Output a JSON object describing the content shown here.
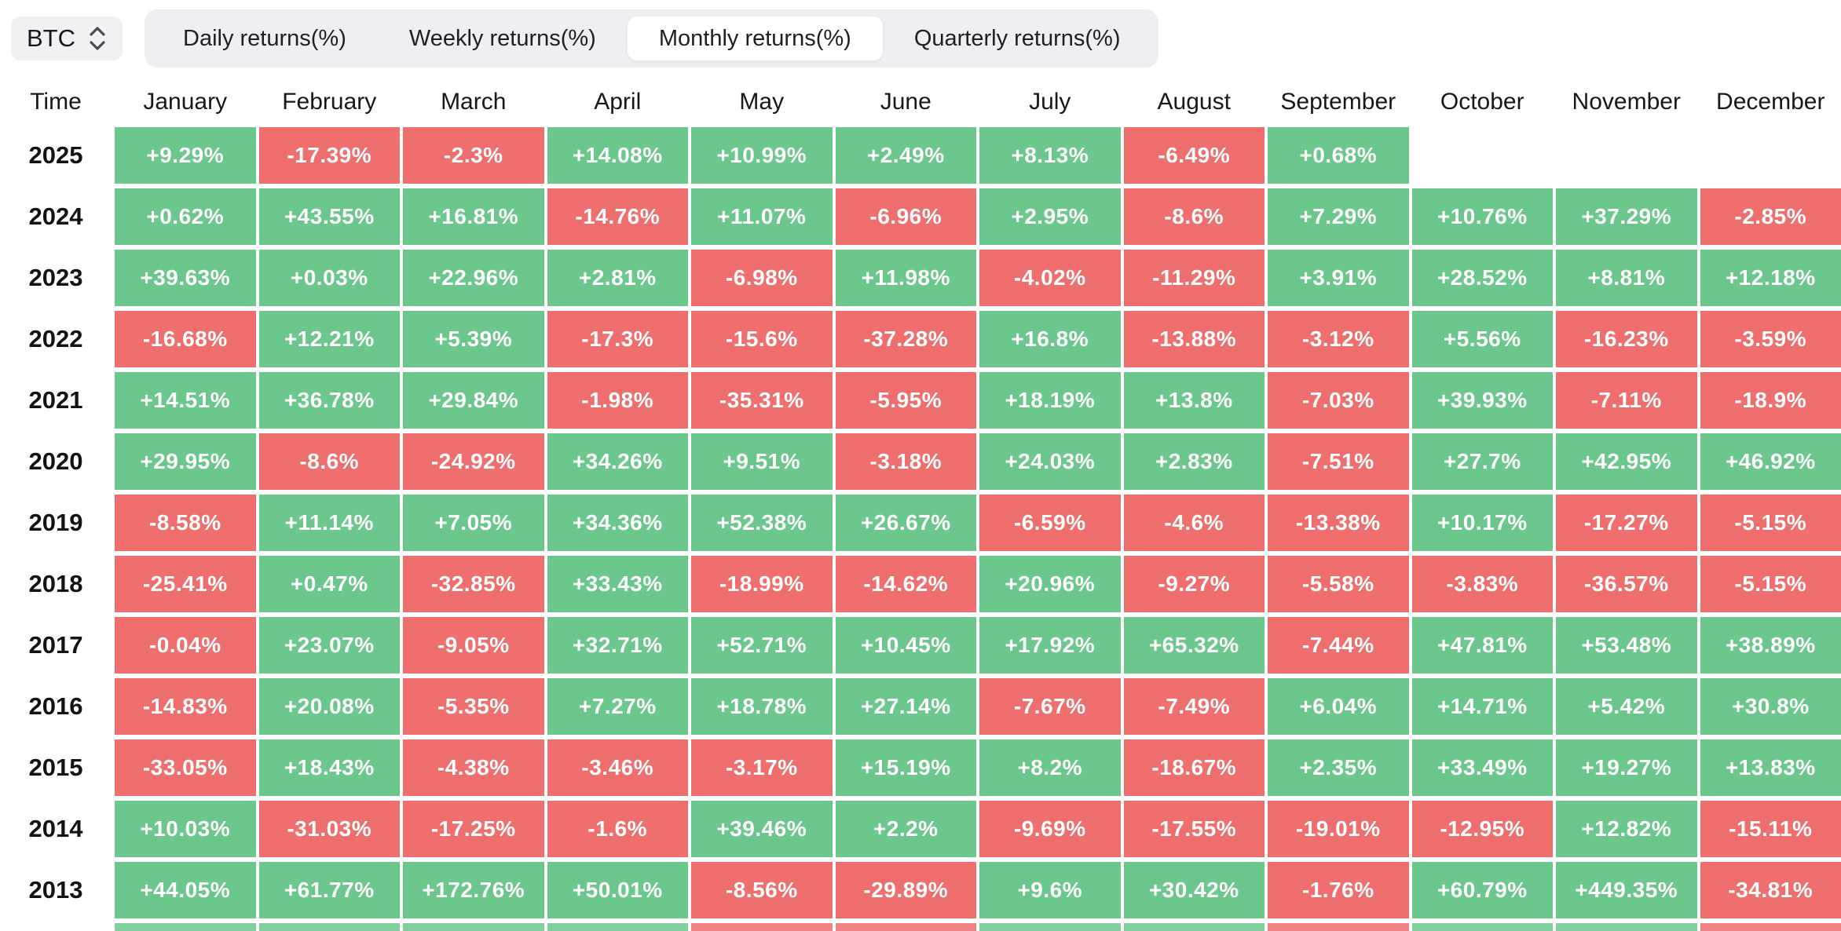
{
  "selector": {
    "symbol": "BTC",
    "icon": "updown-chevron-icon"
  },
  "tabs": {
    "items": [
      {
        "label": "Daily returns(%)",
        "active": false
      },
      {
        "label": "Weekly returns(%)",
        "active": false
      },
      {
        "label": "Monthly returns(%)",
        "active": true
      },
      {
        "label": "Quarterly returns(%)",
        "active": false
      }
    ]
  },
  "colors": {
    "positive": "#6CC78D",
    "negative": "#EE6F6E",
    "cell_text": "#FFFFFF",
    "header_text": "#17171C",
    "tabbar_bg": "#EFEFF3",
    "active_tab_bg": "#FFFFFF",
    "symbol_pill_bg": "#F1F1F4"
  },
  "chart_data": {
    "type": "heatmap",
    "title": "BTC Monthly returns(%)",
    "columns": [
      "Time",
      "January",
      "February",
      "March",
      "April",
      "May",
      "June",
      "July",
      "August",
      "September",
      "October",
      "November",
      "December"
    ],
    "rows": [
      {
        "year": "2025",
        "values": [
          "+9.29%",
          "-17.39%",
          "-2.3%",
          "+14.08%",
          "+10.99%",
          "+2.49%",
          "+8.13%",
          "-6.49%",
          "+0.68%",
          null,
          null,
          null
        ]
      },
      {
        "year": "2024",
        "values": [
          "+0.62%",
          "+43.55%",
          "+16.81%",
          "-14.76%",
          "+11.07%",
          "-6.96%",
          "+2.95%",
          "-8.6%",
          "+7.29%",
          "+10.76%",
          "+37.29%",
          "-2.85%"
        ]
      },
      {
        "year": "2023",
        "values": [
          "+39.63%",
          "+0.03%",
          "+22.96%",
          "+2.81%",
          "-6.98%",
          "+11.98%",
          "-4.02%",
          "-11.29%",
          "+3.91%",
          "+28.52%",
          "+8.81%",
          "+12.18%"
        ]
      },
      {
        "year": "2022",
        "values": [
          "-16.68%",
          "+12.21%",
          "+5.39%",
          "-17.3%",
          "-15.6%",
          "-37.28%",
          "+16.8%",
          "-13.88%",
          "-3.12%",
          "+5.56%",
          "-16.23%",
          "-3.59%"
        ]
      },
      {
        "year": "2021",
        "values": [
          "+14.51%",
          "+36.78%",
          "+29.84%",
          "-1.98%",
          "-35.31%",
          "-5.95%",
          "+18.19%",
          "+13.8%",
          "-7.03%",
          "+39.93%",
          "-7.11%",
          "-18.9%"
        ]
      },
      {
        "year": "2020",
        "values": [
          "+29.95%",
          "-8.6%",
          "-24.92%",
          "+34.26%",
          "+9.51%",
          "-3.18%",
          "+24.03%",
          "+2.83%",
          "-7.51%",
          "+27.7%",
          "+42.95%",
          "+46.92%"
        ]
      },
      {
        "year": "2019",
        "values": [
          "-8.58%",
          "+11.14%",
          "+7.05%",
          "+34.36%",
          "+52.38%",
          "+26.67%",
          "-6.59%",
          "-4.6%",
          "-13.38%",
          "+10.17%",
          "-17.27%",
          "-5.15%"
        ]
      },
      {
        "year": "2018",
        "values": [
          "-25.41%",
          "+0.47%",
          "-32.85%",
          "+33.43%",
          "-18.99%",
          "-14.62%",
          "+20.96%",
          "-9.27%",
          "-5.58%",
          "-3.83%",
          "-36.57%",
          "-5.15%"
        ]
      },
      {
        "year": "2017",
        "values": [
          "-0.04%",
          "+23.07%",
          "-9.05%",
          "+32.71%",
          "+52.71%",
          "+10.45%",
          "+17.92%",
          "+65.32%",
          "-7.44%",
          "+47.81%",
          "+53.48%",
          "+38.89%"
        ]
      },
      {
        "year": "2016",
        "values": [
          "-14.83%",
          "+20.08%",
          "-5.35%",
          "+7.27%",
          "+18.78%",
          "+27.14%",
          "-7.67%",
          "-7.49%",
          "+6.04%",
          "+14.71%",
          "+5.42%",
          "+30.8%"
        ]
      },
      {
        "year": "2015",
        "values": [
          "-33.05%",
          "+18.43%",
          "-4.38%",
          "-3.46%",
          "-3.17%",
          "+15.19%",
          "+8.2%",
          "-18.67%",
          "+2.35%",
          "+33.49%",
          "+19.27%",
          "+13.83%"
        ]
      },
      {
        "year": "2014",
        "values": [
          "+10.03%",
          "-31.03%",
          "-17.25%",
          "-1.6%",
          "+39.46%",
          "+2.2%",
          "-9.69%",
          "-17.55%",
          "-19.01%",
          "-12.95%",
          "+12.82%",
          "-15.11%"
        ]
      },
      {
        "year": "2013",
        "values": [
          "+44.05%",
          "+61.77%",
          "+172.76%",
          "+50.01%",
          "-8.56%",
          "-29.89%",
          "+9.6%",
          "+30.42%",
          "-1.76%",
          "+60.79%",
          "+449.35%",
          "-34.81%"
        ]
      }
    ],
    "partial_bottom_row_colors": [
      "pos",
      "pos",
      "pos",
      "pos",
      "neg",
      "neg",
      "pos",
      "pos",
      "neg",
      "pos",
      "pos",
      "neg"
    ]
  }
}
